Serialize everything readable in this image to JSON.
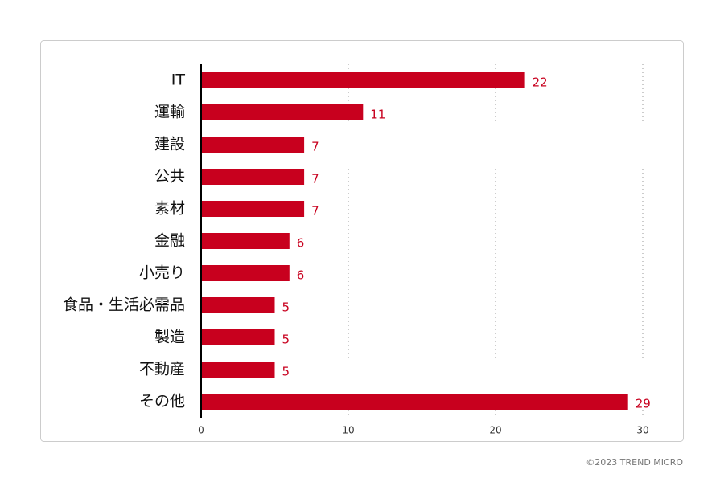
{
  "chart_data": {
    "type": "bar",
    "orientation": "horizontal",
    "categories": [
      "IT",
      "運輸",
      "建設",
      "公共",
      "素材",
      "金融",
      "小売り",
      "食品・生活必需品",
      "製造",
      "不動産",
      "その他"
    ],
    "values": [
      22,
      11,
      7,
      7,
      7,
      6,
      6,
      5,
      5,
      5,
      29
    ],
    "color": "#c8001e",
    "xlim": [
      0,
      30
    ],
    "xticks": [
      0,
      10,
      20,
      30
    ],
    "grid": true,
    "footer": "©2023 TREND MICRO"
  }
}
